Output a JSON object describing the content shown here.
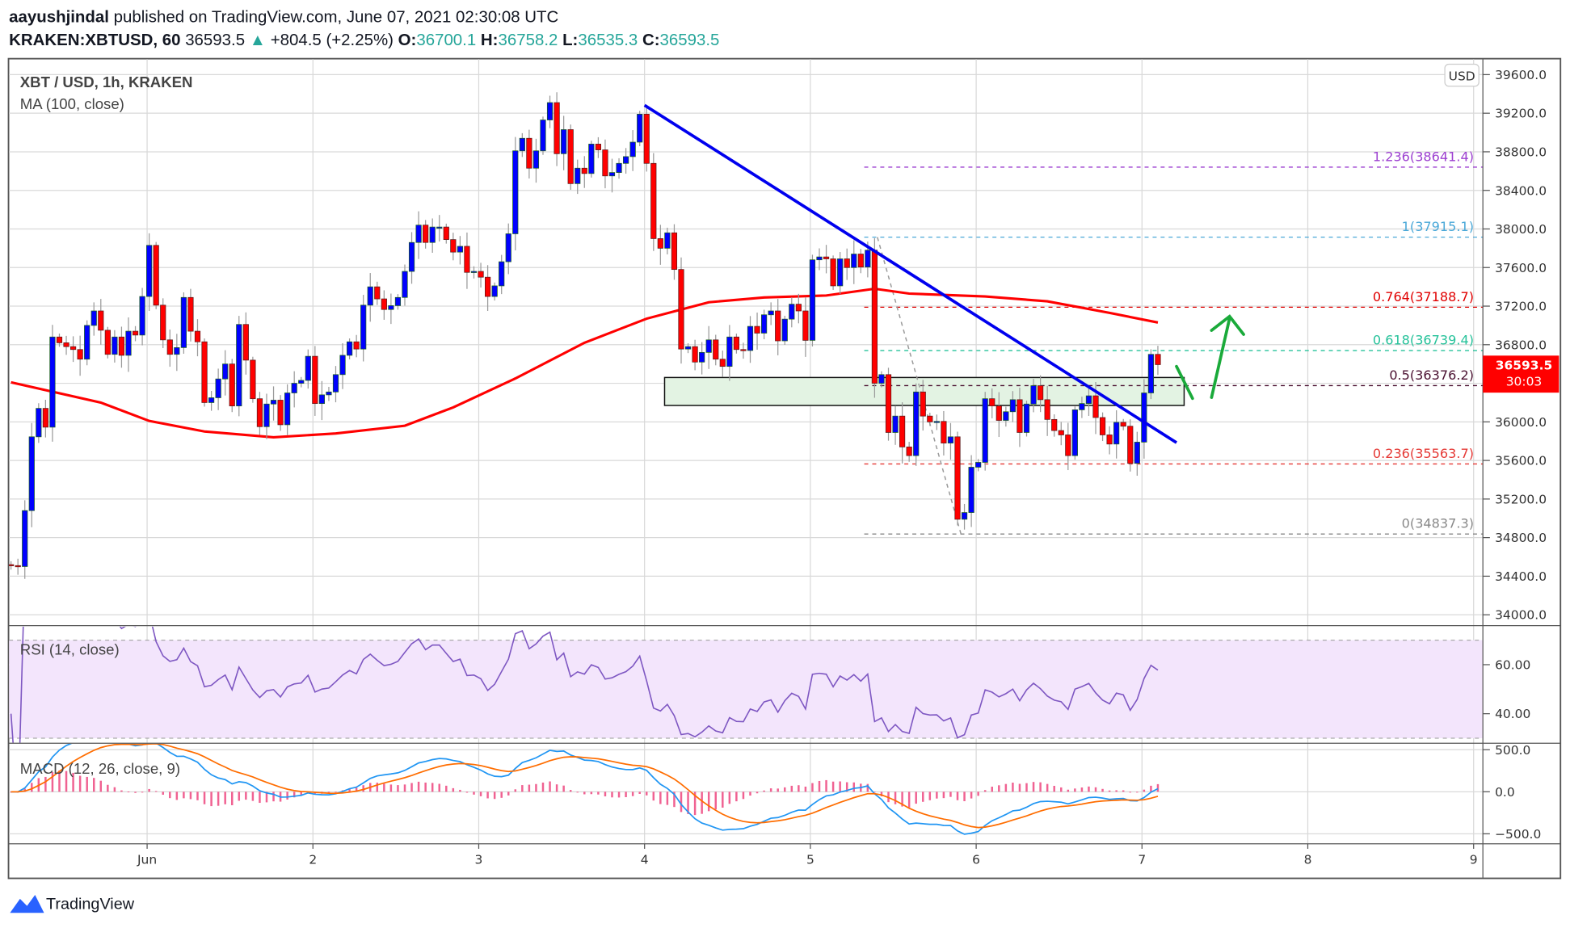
{
  "header": {
    "author": "aayushjindal",
    "published": " published on TradingView.com, June 07, 2021 02:30:08 UTC",
    "symbol": "KRAKEN:XBTUSD, 60",
    "last": "36593.5",
    "arrow": "▲",
    "change": "+804.5 (+2.25%)",
    "o_label": "O:",
    "o_value": "36700.1",
    "h_label": "H:",
    "h_value": "36758.2",
    "l_label": "L:",
    "l_value": "36535.3",
    "c_label": "C:",
    "c_value": "36593.5"
  },
  "footer": {
    "logo_text": "TradingView"
  },
  "colors": {
    "up": "#0000ff",
    "down": "#ff0000",
    "ma": "#ff0000",
    "trendline": "#0000ee",
    "rsi": "#7e57c2",
    "macd": "#2196f3",
    "signal": "#ff6d00",
    "hist": "#f06292",
    "arrows": "#1aaa3a"
  },
  "chart_data": {
    "type": "candlestick",
    "title": "XBT / USD, 1h, KRAKEN",
    "indicator_label": "MA (100, close)",
    "currency_badge": "USD",
    "last_price_label": "36593.5",
    "countdown_label": "30:03",
    "candles_per_day": 24,
    "first_day_index": 19.7,
    "xlabels": [
      "Jun",
      "2",
      "3",
      "4",
      "5",
      "6",
      "7",
      "8",
      "9"
    ],
    "ylim": [
      33800,
      39800
    ],
    "yticks": [
      "39600.0",
      "39200.0",
      "38800.0",
      "38400.0",
      "38000.0",
      "37600.0",
      "37200.0",
      "36800.0",
      "36000.0",
      "35600.0",
      "35200.0",
      "34800.0",
      "34400.0",
      "34000.0"
    ],
    "ytick_values": [
      39600,
      39200,
      38800,
      38400,
      38000,
      37600,
      37200,
      36800,
      36000,
      35600,
      35200,
      34800,
      34400,
      34000
    ],
    "first_open": 34520,
    "closes": [
      34510,
      34500,
      35080,
      35845,
      36140,
      35945,
      36880,
      36820,
      36780,
      36750,
      36650,
      37000,
      37150,
      36950,
      36700,
      36880,
      36690,
      36940,
      36900,
      37300,
      37830,
      37210,
      36850,
      36700,
      36770,
      37290,
      36940,
      36830,
      36200,
      36250,
      36445,
      36600,
      36165,
      37010,
      36640,
      36240,
      35950,
      36185,
      36225,
      35970,
      36300,
      36400,
      36430,
      36680,
      36190,
      36280,
      36310,
      36490,
      36690,
      36830,
      36755,
      37210,
      37400,
      37275,
      37165,
      37205,
      37290,
      37560,
      37860,
      38040,
      37860,
      38020,
      38020,
      37890,
      37760,
      37820,
      37550,
      37560,
      37500,
      37300,
      37410,
      37660,
      37950,
      38810,
      38940,
      38630,
      38810,
      39130,
      39310,
      38780,
      39030,
      38470,
      38630,
      38575,
      38880,
      38820,
      38550,
      38585,
      38680,
      38750,
      38900,
      39190,
      38680,
      37900,
      37800,
      37960,
      37580,
      36755,
      36780,
      36620,
      36720,
      36850,
      36650,
      36575,
      36880,
      36750,
      36740,
      36990,
      36920,
      37110,
      37150,
      36840,
      37065,
      37220,
      37150,
      36845,
      37680,
      37710,
      37690,
      37410,
      37690,
      37600,
      37740,
      37605,
      37780,
      36400,
      36490,
      35890,
      36060,
      35740,
      35650,
      36310,
      36060,
      36000,
      36005,
      35780,
      35845,
      34990,
      35060,
      35530,
      35580,
      36240,
      36165,
      36015,
      36105,
      36230,
      35890,
      36185,
      36375,
      36230,
      36025,
      35910,
      35865,
      35650,
      36125,
      36190,
      36270,
      36045,
      35865,
      35770,
      35995,
      35955,
      35570,
      35790,
      36300,
      36700,
      36593.5
    ],
    "ma100": [
      [
        0,
        36410
      ],
      [
        13,
        36200
      ],
      [
        20,
        36010
      ],
      [
        28,
        35900
      ],
      [
        38,
        35840
      ],
      [
        47,
        35880
      ],
      [
        57,
        35960
      ],
      [
        64,
        36150
      ],
      [
        73,
        36450
      ],
      [
        83,
        36820
      ],
      [
        92,
        37070
      ],
      [
        101,
        37240
      ],
      [
        109,
        37290
      ],
      [
        118,
        37310
      ],
      [
        125,
        37380
      ],
      [
        130,
        37330
      ],
      [
        141,
        37300
      ],
      [
        150,
        37250
      ],
      [
        159,
        37130
      ],
      [
        166,
        37030
      ]
    ],
    "fib_levels": [
      {
        "label": "1.236(38641.4)",
        "value": 38641.4,
        "color": "#9c3fd0"
      },
      {
        "label": "1(37915.1)",
        "value": 37915.1,
        "color": "#4aa8d8"
      },
      {
        "label": "0.764(37188.7)",
        "value": 37188.7,
        "color": "#e00000"
      },
      {
        "label": "0.618(36739.4)",
        "value": 36739.4,
        "color": "#26c29a"
      },
      {
        "label": "0.5(36376.2)",
        "value": 36376.2,
        "color": "#4a1030"
      },
      {
        "label": "0.236(35563.7)",
        "value": 35563.7,
        "color": "#e53935"
      },
      {
        "label": "0(34837.3)",
        "value": 34837.3,
        "color": "#888888"
      }
    ],
    "fib_start_index": 123.5,
    "fib_diagonal": [
      [
        125.4,
        37915.1
      ],
      [
        137.5,
        34837.3
      ]
    ],
    "trendline": [
      [
        91.7,
        39283
      ],
      [
        168.7,
        35785
      ]
    ],
    "support_zone": {
      "from_index": 94.6,
      "to_index": 169.8,
      "top": 36460,
      "bottom": 36170
    },
    "rsi": {
      "label": "RSI (14, close)",
      "period": 14,
      "ticks": [
        "60.00",
        "40.00"
      ],
      "tick_values": [
        60,
        40
      ],
      "band": [
        70,
        30
      ]
    },
    "macd": {
      "label": "MACD (12, 26, close, 9)",
      "fast": 12,
      "slow": 26,
      "signal": 9,
      "ticks": [
        "500.0",
        "0.0",
        "−500.0"
      ],
      "tick_values": [
        500,
        0,
        -500
      ]
    }
  }
}
